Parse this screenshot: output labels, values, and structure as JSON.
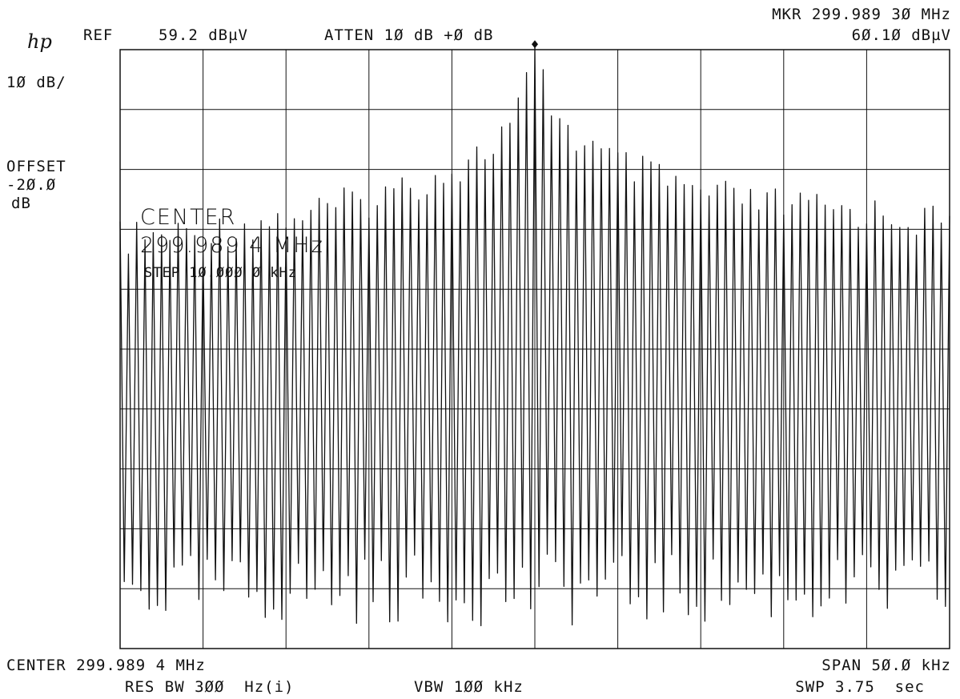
{
  "header": {
    "logo": "hp",
    "ref_label": "REF",
    "ref_value": "59.2 dBµV",
    "atten": "ATTEN 1Ø dB +Ø dB",
    "marker_freq": "MKR 299.989 3Ø MHz",
    "marker_level": "6Ø.1Ø dBµV"
  },
  "left_panel": {
    "scale": "1Ø dB/",
    "offset_label": "OFFSET",
    "offset_value": "-2Ø.Ø",
    "offset_unit": "dB"
  },
  "overlay": {
    "center_label": "CENTER",
    "center_value": "299.989 4 MHz",
    "step": "STEP 1Ø.ØØØ Ø kHz"
  },
  "footer": {
    "center": "CENTER 299.989 4 MHz",
    "span": "SPAN 5Ø.Ø kHz",
    "res_bw": "RES BW 3ØØ  Hz(i)",
    "vbw": "VBW 1ØØ kHz",
    "swp": "SWP 3.75  sec"
  },
  "colors": {
    "trace": "#111111",
    "grid": "#111111",
    "background": "#ffffff"
  },
  "chart_data": {
    "type": "line",
    "x_unit": "kHz offset from center",
    "y_unit": "dBµV",
    "xlim": [
      -25,
      25
    ],
    "ylim": [
      -40.8,
      59.2
    ],
    "grid": true,
    "divisions": {
      "x": 10,
      "y": 10
    },
    "peak": {
      "x": 0,
      "y": 60.1
    },
    "envelope": {
      "x": [
        -25,
        -20,
        -15,
        -10,
        -7,
        -5,
        -3,
        -2,
        -1,
        0,
        1,
        2,
        3,
        5,
        7,
        10,
        15,
        20,
        25
      ],
      "y": [
        30.5,
        31.5,
        34,
        37,
        40,
        42,
        45,
        48,
        52,
        60.1,
        53,
        49,
        46,
        43,
        41,
        38,
        36,
        35,
        33
      ]
    },
    "floor": -37,
    "comb_spacing_khz": 0.5
  }
}
